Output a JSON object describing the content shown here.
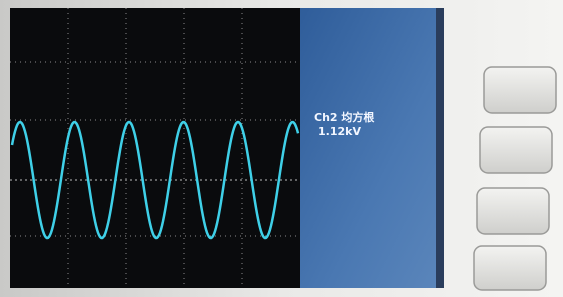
{
  "measurement": {
    "label": "Ch2 均方根",
    "value": "1.12kV"
  }
}
